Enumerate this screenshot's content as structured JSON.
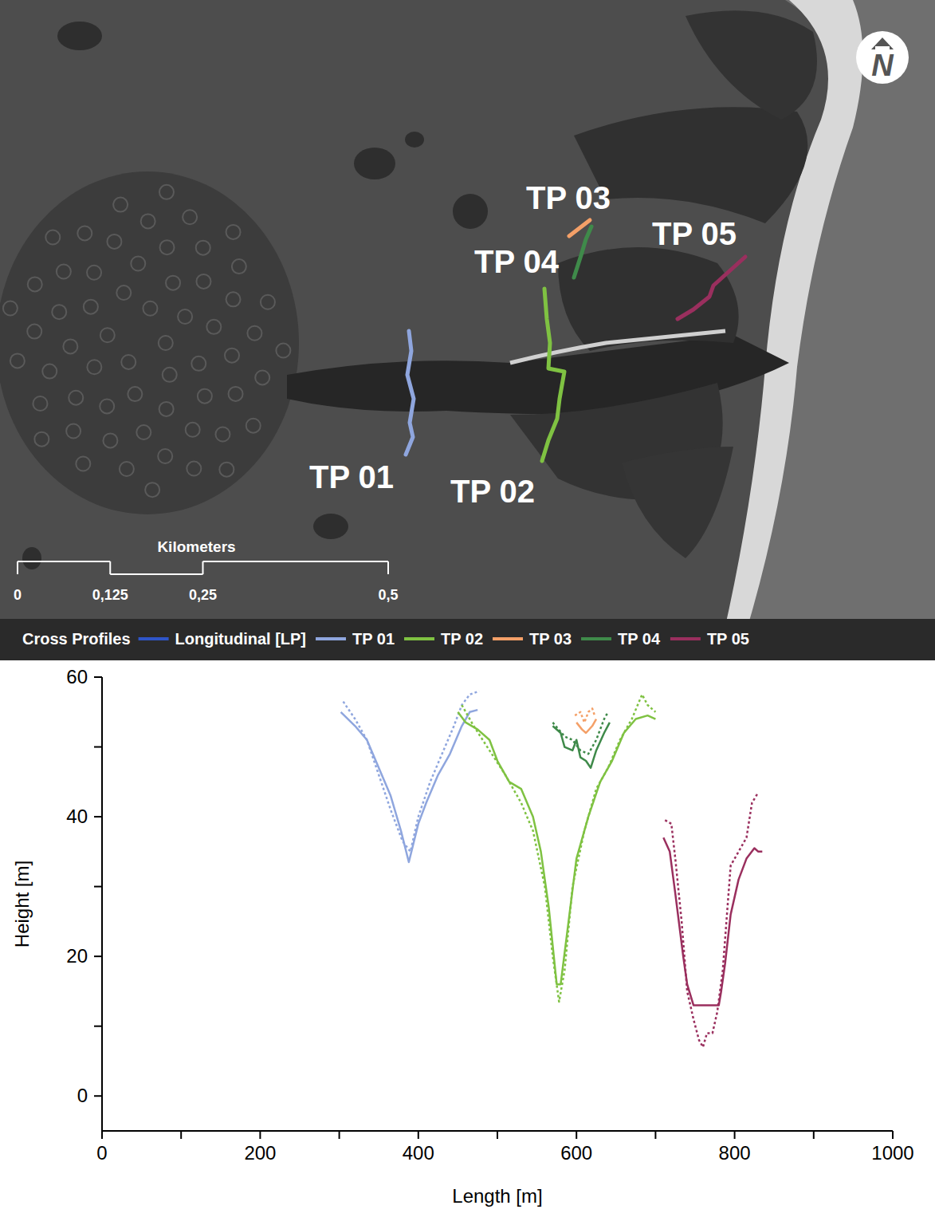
{
  "map": {
    "north": "N",
    "labels": [
      "TP 03",
      "TP 04",
      "TP 05",
      "TP 01",
      "TP 02"
    ],
    "scale": {
      "title": "Kilometers",
      "ticks": [
        {
          "value": 0,
          "label": "0"
        },
        {
          "value": 0.125,
          "label": "0,125"
        },
        {
          "value": 0.25,
          "label": "0,25"
        },
        {
          "value": 0.5,
          "label": "0,5"
        }
      ]
    },
    "legend": {
      "title": "Cross Profiles",
      "entries": [
        {
          "name": "Longitudinal [LP]",
          "color": "#2f55c8"
        },
        {
          "name": "TP 01",
          "color": "#8fa6de"
        },
        {
          "name": "TP 02",
          "color": "#7fc242"
        },
        {
          "name": "TP 03",
          "color": "#f4a068"
        },
        {
          "name": "TP 04",
          "color": "#3f8a4a"
        },
        {
          "name": "TP 05",
          "color": "#9a2f5e"
        }
      ]
    }
  },
  "chart_data": {
    "type": "line",
    "x_label": "Length [m]",
    "y_label": "Height [m]",
    "xlim": [
      0,
      1000
    ],
    "xticks": [
      0,
      200,
      400,
      600,
      800,
      1000
    ],
    "ylim": [
      -5,
      60
    ],
    "yticks": [
      0,
      20,
      40,
      60
    ],
    "series": [
      {
        "name": "TP 01",
        "color": "#8fa6de",
        "line_style": "solid",
        "x": [
          302,
          320,
          335,
          350,
          365,
          378,
          388,
          400,
          410,
          425,
          440,
          455,
          465,
          475
        ],
        "values": [
          55,
          53,
          51,
          47,
          43,
          38,
          33.5,
          39,
          42,
          46,
          49,
          53,
          55,
          55.3
        ]
      },
      {
        "name": "TP 01",
        "color": "#8fa6de",
        "line_style": "dotted",
        "x": [
          305,
          320,
          335,
          350,
          365,
          380,
          390,
          400,
          415,
          430,
          445,
          455,
          465,
          477
        ],
        "values": [
          56.5,
          54,
          51,
          46,
          41,
          36.5,
          35,
          40,
          45,
          49,
          53,
          56,
          57.5,
          58
        ]
      },
      {
        "name": "TP 02",
        "color": "#7fc242",
        "line_style": "solid",
        "x": [
          450,
          460,
          475,
          490,
          500,
          515,
          530,
          545,
          555,
          565,
          575,
          580,
          590,
          600,
          615,
          630,
          645,
          660,
          675,
          690,
          700
        ],
        "values": [
          55,
          53.5,
          52.5,
          51,
          48,
          45,
          44,
          40,
          35,
          27,
          16,
          16,
          25,
          34,
          40,
          45,
          48,
          52,
          54,
          54.5,
          54
        ]
      },
      {
        "name": "TP 02",
        "color": "#7fc242",
        "line_style": "dotted",
        "x": [
          455,
          470,
          490,
          510,
          530,
          545,
          560,
          570,
          578,
          585,
          595,
          610,
          625,
          640,
          655,
          670,
          683,
          690,
          700
        ],
        "values": [
          56,
          53,
          49.5,
          46,
          42,
          38,
          30,
          20,
          13.5,
          18,
          30,
          38,
          44,
          47,
          51,
          54,
          57.5,
          56,
          55
        ]
      },
      {
        "name": "TP 03",
        "color": "#f4a068",
        "line_style": "solid",
        "x": [
          600,
          607,
          612,
          620,
          625
        ],
        "values": [
          53.5,
          52.5,
          52,
          53,
          54
        ]
      },
      {
        "name": "TP 03",
        "color": "#f4a068",
        "line_style": "dotted",
        "x": [
          598,
          605,
          610,
          615,
          620,
          623
        ],
        "values": [
          54.5,
          55,
          53.5,
          55,
          55.5,
          54.5
        ]
      },
      {
        "name": "TP 04",
        "color": "#3f8a4a",
        "line_style": "solid",
        "x": [
          570,
          580,
          585,
          595,
          600,
          605,
          612,
          618,
          625,
          635,
          642
        ],
        "values": [
          53,
          52,
          50,
          49.5,
          51,
          48.5,
          48,
          47,
          49.5,
          52,
          53.5
        ]
      },
      {
        "name": "TP 04",
        "color": "#3f8a4a",
        "line_style": "dotted",
        "x": [
          570,
          585,
          595,
          605,
          615,
          625,
          635,
          640
        ],
        "values": [
          53.5,
          51.5,
          51,
          49.5,
          49,
          51,
          54,
          55
        ]
      },
      {
        "name": "TP 05",
        "color": "#9a2f5e",
        "line_style": "solid",
        "x": [
          710,
          718,
          725,
          735,
          740,
          748,
          770,
          780,
          783,
          788,
          795,
          805,
          815,
          825,
          830,
          835
        ],
        "values": [
          37,
          35,
          29,
          20,
          16,
          13,
          13,
          13,
          15,
          19,
          26,
          31,
          34,
          35.5,
          35,
          35
        ]
      },
      {
        "name": "TP 05",
        "color": "#9a2f5e",
        "line_style": "dotted",
        "x": [
          712,
          720,
          725,
          733,
          740,
          748,
          755,
          760,
          765,
          772,
          778,
          785,
          795,
          805,
          815,
          822,
          830
        ],
        "values": [
          39.5,
          39,
          34,
          25,
          15,
          11,
          8,
          7,
          9,
          9,
          12,
          18,
          33,
          35,
          37,
          42,
          43.5
        ]
      }
    ]
  }
}
